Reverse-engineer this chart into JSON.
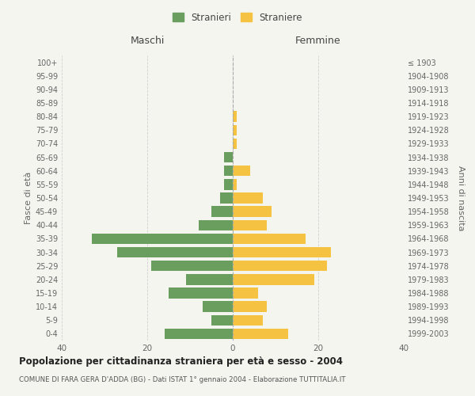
{
  "age_groups": [
    "0-4",
    "5-9",
    "10-14",
    "15-19",
    "20-24",
    "25-29",
    "30-34",
    "35-39",
    "40-44",
    "45-49",
    "50-54",
    "55-59",
    "60-64",
    "65-69",
    "70-74",
    "75-79",
    "80-84",
    "85-89",
    "90-94",
    "95-99",
    "100+"
  ],
  "birth_years": [
    "1999-2003",
    "1994-1998",
    "1989-1993",
    "1984-1988",
    "1979-1983",
    "1974-1978",
    "1969-1973",
    "1964-1968",
    "1959-1963",
    "1954-1958",
    "1949-1953",
    "1944-1948",
    "1939-1943",
    "1934-1938",
    "1929-1933",
    "1924-1928",
    "1919-1923",
    "1914-1918",
    "1909-1913",
    "1904-1908",
    "≤ 1903"
  ],
  "males": [
    16,
    5,
    7,
    15,
    11,
    19,
    27,
    33,
    8,
    5,
    3,
    2,
    2,
    2,
    0,
    0,
    0,
    0,
    0,
    0,
    0
  ],
  "females": [
    13,
    7,
    8,
    6,
    19,
    22,
    23,
    17,
    8,
    9,
    7,
    1,
    4,
    0,
    1,
    1,
    1,
    0,
    0,
    0,
    0
  ],
  "male_color": "#6a9e5e",
  "female_color": "#f5c242",
  "bg_color": "#f5f5f0",
  "grid_color": "#d0d0d0",
  "title": "Popolazione per cittadinanza straniera per età e sesso - 2004",
  "subtitle": "COMUNE DI FARA GERA D'ADDA (BG) - Dati ISTAT 1° gennaio 2004 - Elaborazione TUTTITALIA.IT",
  "ylabel_left": "Fasce di età",
  "ylabel_right": "Anni di nascita",
  "legend_male": "Stranieri",
  "legend_female": "Straniere",
  "xlim": 40,
  "maschi_label": "Maschi",
  "femmine_label": "Femmine"
}
